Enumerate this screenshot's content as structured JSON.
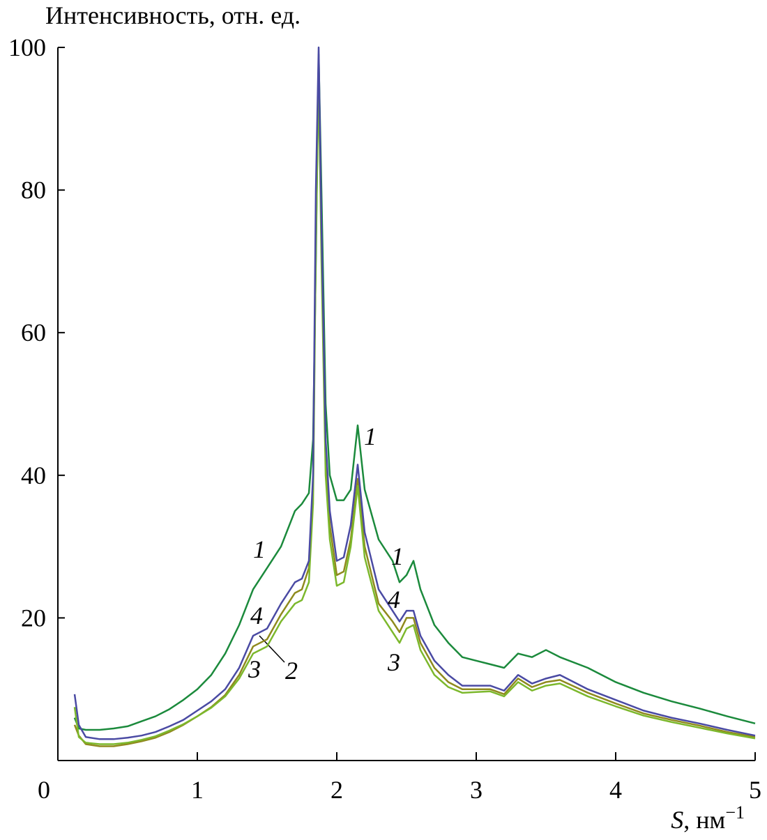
{
  "chart_data": {
    "type": "line",
    "ylabel": "Интенсивность, отн. ед.",
    "xlabel": {
      "symbol": "S",
      "unit": ", нм",
      "exponent": "−1"
    },
    "xlim": [
      0,
      5
    ],
    "ylim": [
      0,
      100
    ],
    "xticks": [
      0,
      1,
      2,
      3,
      4,
      5
    ],
    "yticks": [
      20,
      40,
      60,
      80,
      100
    ],
    "x": [
      0.12,
      0.15,
      0.2,
      0.3,
      0.4,
      0.5,
      0.6,
      0.7,
      0.8,
      0.9,
      1.0,
      1.1,
      1.2,
      1.3,
      1.4,
      1.5,
      1.6,
      1.7,
      1.75,
      1.8,
      1.83,
      1.85,
      1.87,
      1.89,
      1.92,
      1.95,
      2.0,
      2.05,
      2.1,
      2.15,
      2.2,
      2.3,
      2.4,
      2.45,
      2.5,
      2.55,
      2.6,
      2.7,
      2.8,
      2.9,
      3.0,
      3.1,
      3.2,
      3.3,
      3.4,
      3.5,
      3.6,
      3.8,
      4.0,
      4.2,
      4.4,
      4.6,
      4.8,
      5.0
    ],
    "series": [
      {
        "name": "1",
        "color": "#1b8a3c",
        "values": [
          6,
          4.5,
          4.3,
          4.3,
          4.5,
          4.8,
          5.5,
          6.2,
          7.2,
          8.5,
          10,
          12,
          15,
          19,
          24,
          27,
          30,
          35,
          36,
          37.5,
          45,
          70,
          99,
          80,
          50,
          40,
          36.5,
          36.5,
          38,
          47,
          38,
          31,
          28,
          25,
          26,
          28,
          24,
          19,
          16.5,
          14.5,
          14,
          13.5,
          13,
          15,
          14.5,
          15.5,
          14.5,
          13,
          11,
          9.5,
          8.3,
          7.3,
          6.2,
          5.2
        ]
      },
      {
        "name": "2",
        "color": "#8f8a1e",
        "values": [
          5,
          3.5,
          2.3,
          2,
          2,
          2.3,
          2.7,
          3.2,
          4,
          5,
          6.2,
          7.5,
          9.2,
          12,
          16,
          17,
          20.5,
          23.5,
          24,
          27,
          38,
          75,
          98,
          72,
          42,
          33,
          26,
          26.5,
          31,
          39.5,
          30,
          22,
          19.5,
          18,
          20,
          20,
          16.5,
          13,
          11,
          10,
          10,
          10,
          9.3,
          11.5,
          10.3,
          11,
          11.3,
          9.5,
          8,
          6.6,
          5.7,
          4.9,
          4,
          3.3
        ]
      },
      {
        "name": "3",
        "color": "#7cb82c",
        "values": [
          7.5,
          3.3,
          2.5,
          2.3,
          2.3,
          2.5,
          2.9,
          3.4,
          4.2,
          5.1,
          6.2,
          7.4,
          9,
          11.5,
          15,
          16,
          19.5,
          22,
          22.5,
          25,
          36,
          72,
          96,
          70,
          40,
          31,
          24.5,
          25,
          30,
          38.5,
          28.5,
          21,
          18,
          16.5,
          18.5,
          19,
          15.5,
          12,
          10.3,
          9.5,
          9.6,
          9.7,
          9,
          11,
          9.8,
          10.5,
          10.8,
          9,
          7.6,
          6.3,
          5.4,
          4.6,
          3.8,
          3.1
        ]
      },
      {
        "name": "4",
        "color": "#4a4aa3",
        "values": [
          9.3,
          5,
          3.3,
          3,
          3,
          3.2,
          3.5,
          4,
          4.8,
          5.7,
          7,
          8.3,
          10,
          13,
          17.5,
          18.5,
          22,
          25,
          25.5,
          28,
          40,
          80,
          100,
          75,
          45,
          35,
          28,
          28.5,
          33,
          41.5,
          32,
          24,
          21,
          19.5,
          21,
          21,
          17.5,
          14,
          12,
          10.5,
          10.5,
          10.5,
          9.8,
          12,
          10.8,
          11.5,
          12,
          10,
          8.5,
          7,
          6,
          5.2,
          4.3,
          3.5
        ]
      }
    ]
  }
}
